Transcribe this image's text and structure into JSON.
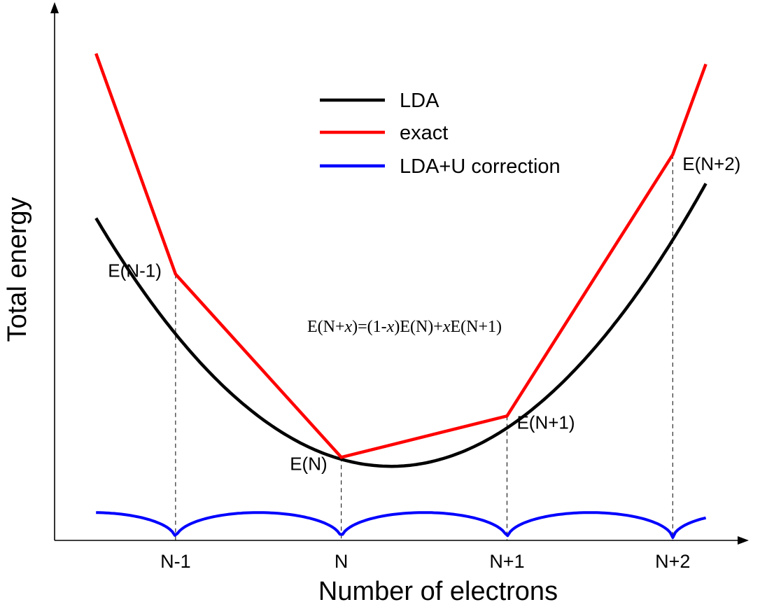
{
  "chart_data": {
    "type": "line",
    "xlabel": "Number of electrons",
    "ylabel": "Total energy",
    "x_ticks": [
      {
        "x": 1,
        "label": "N-1"
      },
      {
        "x": 2,
        "label": "N"
      },
      {
        "x": 3,
        "label": "N+1"
      },
      {
        "x": 4,
        "label": "N+2"
      }
    ],
    "xlim": [
      0.27,
      4.4
    ],
    "ylim": [
      0,
      10
    ],
    "grid": false,
    "legend": {
      "placement": "top-center"
    },
    "colors": {
      "lda": "#000000",
      "exact": "#ff0000",
      "correction": "#0000ff"
    },
    "series": [
      {
        "name": "LDA",
        "key": "lda",
        "kind": "parabola",
        "vertex": {
          "x": 2.3,
          "y": 1.4
        },
        "curvature": 1.48,
        "x_range": [
          0.52,
          4.2
        ]
      },
      {
        "name": "exact",
        "key": "exact",
        "kind": "polyline",
        "points": [
          {
            "x": 0.52,
            "y": 9.2
          },
          {
            "x": 1,
            "y": 5.03
          },
          {
            "x": 2,
            "y": 1.57
          },
          {
            "x": 3,
            "y": 2.35
          },
          {
            "x": 4,
            "y": 7.29
          },
          {
            "x": 4.2,
            "y": 9.0
          }
        ]
      },
      {
        "name": "LDA+U correction",
        "key": "correction",
        "kind": "arcs",
        "peak": 0.5,
        "x_range": [
          0.52,
          4.2
        ]
      }
    ],
    "annotations": [
      {
        "text": "E(N-1)",
        "x": 1,
        "y": 5.03,
        "anchor": "end"
      },
      {
        "text": "E(N)",
        "x": 2,
        "y": 1.57,
        "anchor": "end"
      },
      {
        "text": "E(N+1)",
        "x": 3,
        "y": 2.35,
        "anchor": "start"
      },
      {
        "text": "E(N+2)",
        "x": 4,
        "y": 7.29,
        "anchor": "start"
      }
    ],
    "formula": {
      "parts": [
        {
          "t": "E(N+",
          "i": false
        },
        {
          "t": "x",
          "i": true
        },
        {
          "t": ")=(1-",
          "i": false
        },
        {
          "t": "x",
          "i": true
        },
        {
          "t": ")E(N)+",
          "i": false
        },
        {
          "t": "x",
          "i": true
        },
        {
          "t": "E(N+1)",
          "i": false
        }
      ]
    }
  }
}
